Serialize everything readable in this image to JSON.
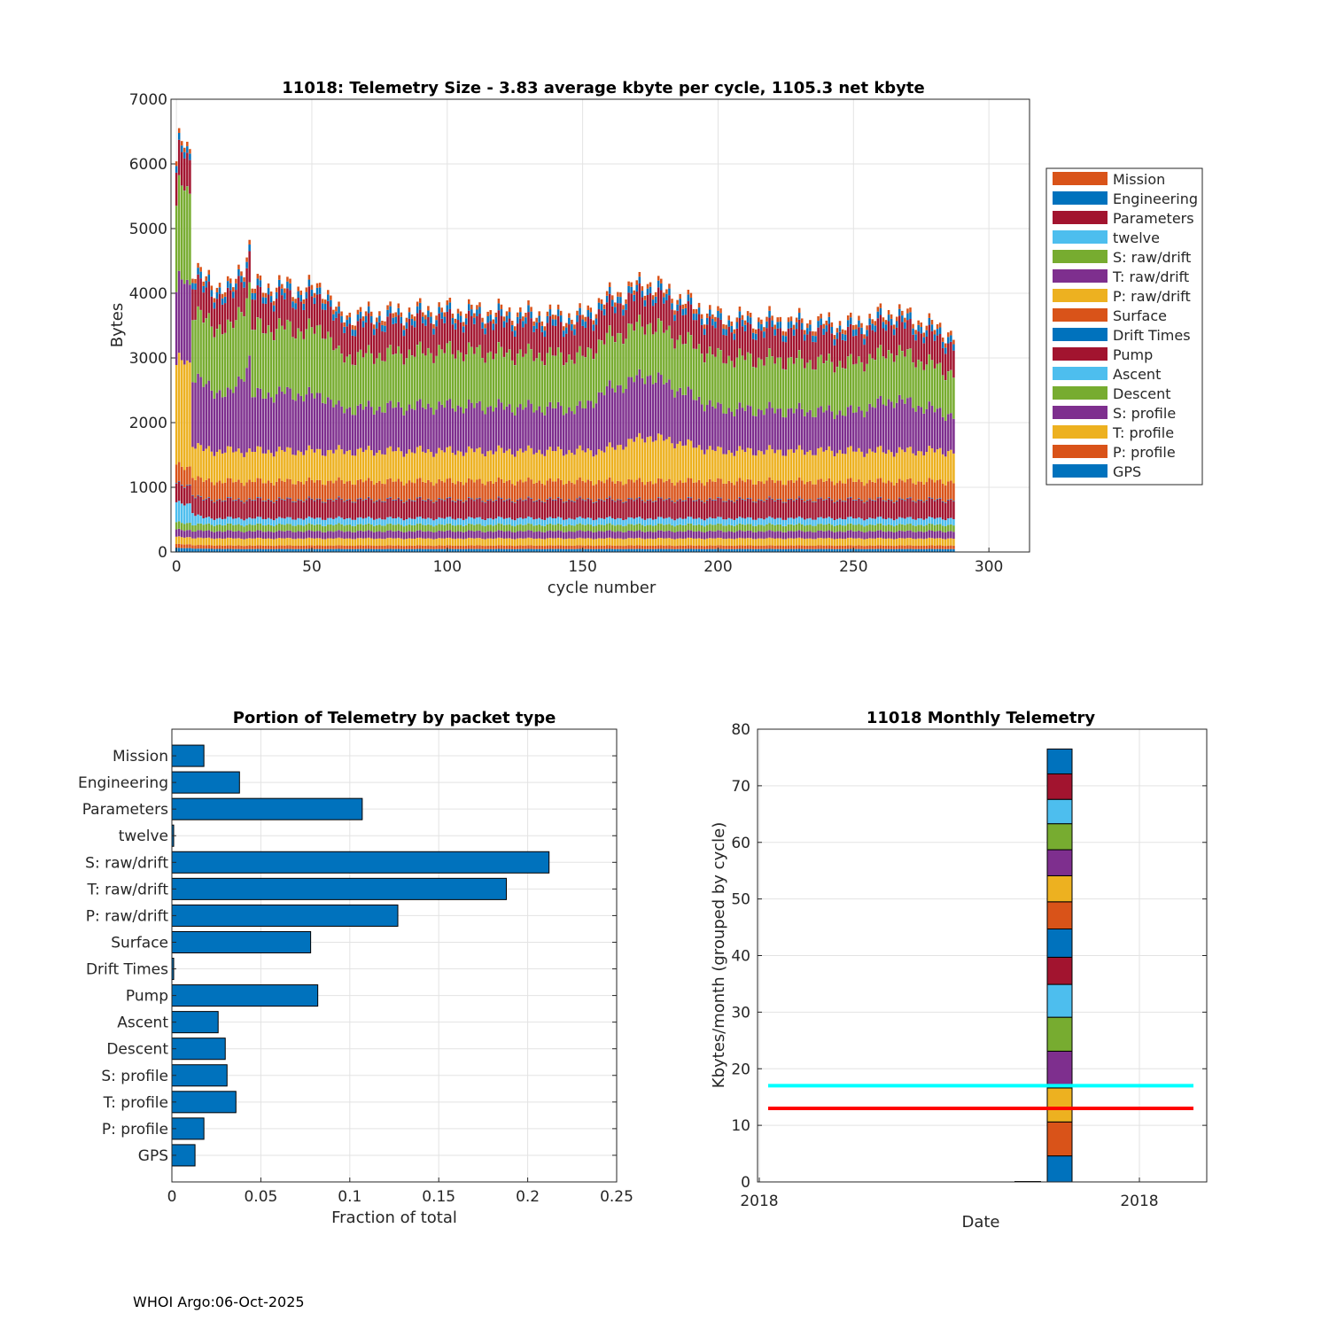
{
  "footer": "WHOI Argo:06-Oct-2025",
  "colors": {
    "blue": "#0072BD",
    "orange": "#D95319",
    "yellow": "#EDB120",
    "purple": "#7E2F8E",
    "green": "#77AC30",
    "lightblue": "#4DBEEE",
    "red": "#A2142F",
    "ref_cyan": "#00FFFF",
    "ref_red": "#FF0000"
  },
  "chart_data": [
    {
      "id": "telemetry-size",
      "type": "bar",
      "stacked": true,
      "title": "11018: Telemetry Size - 3.83 average kbyte per cycle, 1105.3 net kbyte",
      "xlabel": "cycle number",
      "ylabel": "Bytes",
      "xlim": [
        -2,
        315
      ],
      "ylim": [
        0,
        7000
      ],
      "xticks": [
        0,
        50,
        100,
        150,
        200,
        250,
        300
      ],
      "yticks": [
        0,
        1000,
        2000,
        3000,
        4000,
        5000,
        6000,
        7000
      ],
      "grid": true,
      "legend_position": "outside-right",
      "legend": [
        "Mission",
        "Engineering",
        "Parameters",
        "twelve",
        "S: raw/drift",
        "T: raw/drift",
        "P: raw/drift",
        "Surface",
        "Drift Times",
        "Pump",
        "Ascent",
        "Descent",
        "S: profile",
        "T: profile",
        "P: profile",
        "GPS"
      ],
      "legend_colors": [
        "orange",
        "blue",
        "red",
        "lightblue",
        "green",
        "purple",
        "yellow",
        "orange",
        "blue",
        "red",
        "lightblue",
        "green",
        "purple",
        "yellow",
        "orange",
        "blue"
      ],
      "stack_order": [
        "GPS",
        "P: profile",
        "T: profile",
        "S: profile",
        "Descent",
        "Ascent",
        "Pump",
        "Drift Times",
        "Surface",
        "P: raw/drift",
        "T: raw/drift",
        "S: raw/drift",
        "twelve",
        "Parameters",
        "Engineering",
        "Mission"
      ],
      "cycles": [
        0,
        1,
        2,
        3,
        4,
        5,
        6,
        7,
        10,
        20,
        27,
        28,
        40,
        50,
        55,
        60,
        100,
        150,
        157,
        174,
        200,
        250,
        265,
        287
      ],
      "series": [
        {
          "name": "GPS",
          "values": [
            60,
            60,
            60,
            60,
            60,
            60,
            55,
            50,
            50,
            45,
            45,
            45,
            45,
            45,
            45,
            45,
            45,
            45,
            45,
            45,
            45,
            45,
            45,
            45
          ]
        },
        {
          "name": "P: profile",
          "values": [
            60,
            60,
            60,
            60,
            60,
            60,
            55,
            55,
            55,
            55,
            55,
            55,
            55,
            55,
            55,
            55,
            55,
            55,
            55,
            55,
            55,
            55,
            55,
            55
          ]
        },
        {
          "name": "T: profile",
          "values": [
            110,
            110,
            110,
            110,
            110,
            110,
            110,
            110,
            110,
            110,
            110,
            110,
            110,
            110,
            110,
            110,
            110,
            110,
            110,
            110,
            110,
            110,
            110,
            110
          ]
        },
        {
          "name": "S: profile",
          "values": [
            110,
            110,
            110,
            110,
            110,
            110,
            110,
            110,
            110,
            110,
            110,
            110,
            110,
            110,
            110,
            110,
            110,
            110,
            110,
            110,
            110,
            110,
            110,
            110
          ]
        },
        {
          "name": "Descent",
          "values": [
            110,
            110,
            110,
            110,
            110,
            110,
            100,
            100,
            100,
            100,
            100,
            100,
            100,
            100,
            100,
            100,
            100,
            100,
            100,
            100,
            100,
            100,
            100,
            100
          ]
        },
        {
          "name": "Ascent",
          "values": [
            300,
            300,
            300,
            300,
            300,
            300,
            200,
            150,
            100,
            100,
            100,
            100,
            100,
            100,
            100,
            100,
            100,
            100,
            100,
            100,
            100,
            100,
            100,
            100
          ]
        },
        {
          "name": "Pump",
          "values": [
            280,
            280,
            280,
            280,
            280,
            280,
            280,
            280,
            280,
            280,
            280,
            280,
            280,
            280,
            280,
            280,
            280,
            280,
            280,
            280,
            280,
            280,
            280,
            280
          ]
        },
        {
          "name": "Drift Times",
          "values": [
            10,
            10,
            10,
            10,
            10,
            10,
            10,
            10,
            10,
            10,
            10,
            10,
            10,
            10,
            10,
            10,
            10,
            10,
            10,
            10,
            10,
            10,
            10,
            10
          ]
        },
        {
          "name": "Surface",
          "values": [
            280,
            280,
            280,
            280,
            280,
            280,
            280,
            280,
            280,
            280,
            280,
            280,
            280,
            280,
            280,
            280,
            280,
            280,
            280,
            280,
            280,
            280,
            280,
            280
          ]
        },
        {
          "name": "P: raw/drift",
          "values": [
            1500,
            1600,
            1650,
            1700,
            1650,
            1600,
            500,
            500,
            480,
            470,
            470,
            470,
            470,
            470,
            470,
            470,
            470,
            470,
            470,
            700,
            470,
            470,
            470,
            470
          ]
        },
        {
          "name": "T: raw/drift",
          "values": [
            1100,
            1200,
            1250,
            1300,
            1250,
            1200,
            1050,
            1050,
            1000,
            850,
            1400,
            850,
            900,
            850,
            850,
            650,
            700,
            650,
            900,
            950,
            650,
            600,
            800,
            550
          ]
        },
        {
          "name": "S: raw/drift",
          "values": [
            1300,
            1400,
            1450,
            1500,
            1450,
            1400,
            1000,
            1000,
            1000,
            1000,
            1100,
            1050,
            1000,
            1000,
            1050,
            800,
            850,
            800,
            800,
            800,
            800,
            750,
            750,
            650
          ]
        },
        {
          "name": "twelve",
          "values": [
            2,
            2,
            2,
            2,
            2,
            2,
            2,
            2,
            2,
            2,
            2,
            2,
            2,
            2,
            2,
            2,
            2,
            2,
            2,
            2,
            2,
            2,
            2,
            2
          ]
        },
        {
          "name": "Parameters",
          "values": [
            500,
            520,
            520,
            520,
            520,
            520,
            500,
            480,
            470,
            470,
            470,
            470,
            470,
            470,
            470,
            470,
            470,
            460,
            460,
            460,
            450,
            440,
            440,
            430
          ]
        },
        {
          "name": "Engineering",
          "values": [
            100,
            100,
            100,
            100,
            100,
            100,
            100,
            100,
            100,
            100,
            100,
            100,
            100,
            100,
            100,
            100,
            100,
            100,
            100,
            100,
            100,
            100,
            100,
            100
          ]
        },
        {
          "name": "Mission",
          "values": [
            70,
            70,
            70,
            70,
            70,
            70,
            70,
            70,
            70,
            70,
            70,
            70,
            70,
            70,
            70,
            70,
            70,
            70,
            70,
            70,
            70,
            70,
            70,
            70
          ]
        }
      ]
    },
    {
      "id": "portion-by-packet",
      "type": "bar",
      "orientation": "horizontal",
      "title": "Portion of Telemetry by packet type",
      "xlabel": "Fraction of total",
      "ylabel": "",
      "xlim": [
        0,
        0.25
      ],
      "xticks": [
        0,
        0.05,
        0.1,
        0.15,
        0.2,
        0.25
      ],
      "xtick_labels": [
        "0",
        "0.05",
        "0.1",
        "0.15",
        "0.2",
        "0.25"
      ],
      "grid": true,
      "categories": [
        "Mission",
        "Engineering",
        "Parameters",
        "twelve",
        "S: raw/drift",
        "T: raw/drift",
        "P: raw/drift",
        "Surface",
        "Drift Times",
        "Pump",
        "Ascent",
        "Descent",
        "S: profile",
        "T: profile",
        "P: profile",
        "GPS"
      ],
      "values": [
        0.018,
        0.038,
        0.107,
        0.001,
        0.212,
        0.188,
        0.127,
        0.078,
        0.001,
        0.082,
        0.026,
        0.03,
        0.031,
        0.036,
        0.018,
        0.013
      ]
    },
    {
      "id": "monthly-telemetry",
      "type": "bar",
      "stacked": true,
      "title": "11018 Monthly Telemetry",
      "xlabel": "Date",
      "ylabel": "Kbytes/month (grouped by cycle)",
      "ylim": [
        0,
        80
      ],
      "yticks": [
        0,
        10,
        20,
        30,
        40,
        50,
        60,
        70,
        80
      ],
      "xtick_labels": [
        "2018",
        "2018"
      ],
      "grid": true,
      "segments": [
        {
          "color": "blue",
          "value": 4.6
        },
        {
          "color": "orange",
          "value": 6.0
        },
        {
          "color": "yellow",
          "value": 6.0
        },
        {
          "color": "purple",
          "value": 6.5
        },
        {
          "color": "green",
          "value": 6.0
        },
        {
          "color": "lightblue",
          "value": 5.8
        },
        {
          "color": "red",
          "value": 4.8
        },
        {
          "color": "blue",
          "value": 5.0
        },
        {
          "color": "orange",
          "value": 4.8
        },
        {
          "color": "yellow",
          "value": 4.6
        },
        {
          "color": "purple",
          "value": 4.6
        },
        {
          "color": "green",
          "value": 4.6
        },
        {
          "color": "lightblue",
          "value": 4.3
        },
        {
          "color": "red",
          "value": 4.5
        },
        {
          "color": "blue",
          "value": 4.4
        }
      ],
      "reference_lines": [
        {
          "name": "cyan limit",
          "color": "ref_cyan",
          "value": 17
        },
        {
          "name": "red limit",
          "color": "ref_red",
          "value": 13
        }
      ]
    }
  ]
}
